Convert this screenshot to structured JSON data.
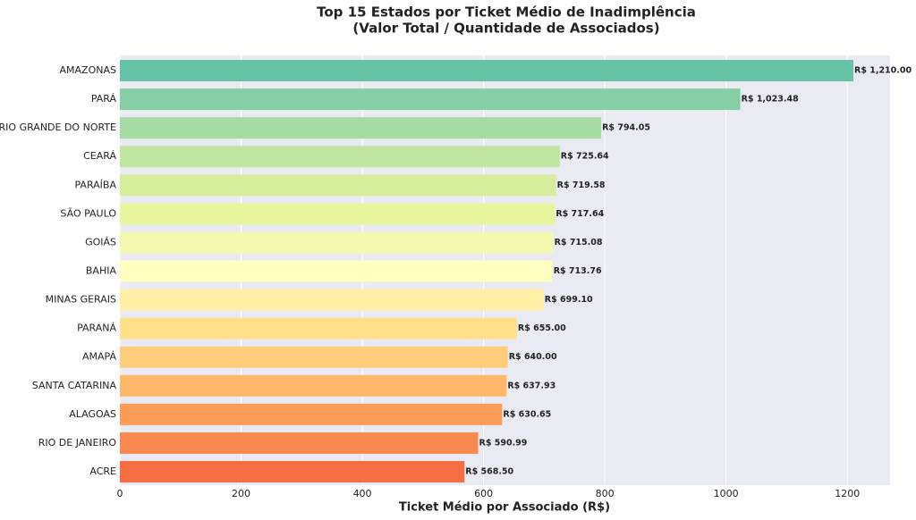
{
  "chart_data": {
    "type": "barh",
    "title": "Top 15 Estados por Ticket Médio de Inadimplência",
    "subtitle": "(Valor Total / Quantidade de Associados)",
    "x_label": "Ticket Médio por Associado (R$)",
    "categories": [
      "AMAZONAS",
      "PARÁ",
      "RIO GRANDE DO NORTE",
      "CEARÁ",
      "PARAÍBA",
      "SÃO PAULO",
      "GOIÁS",
      "BAHIA",
      "MINAS GERAIS",
      "PARANÁ",
      "AMAPÁ",
      "SANTA CATARINA",
      "ALAGOAS",
      "RIO DE JANEIRO",
      "ACRE"
    ],
    "values": [
      1210.0,
      1023.48,
      794.05,
      725.64,
      719.58,
      717.64,
      715.08,
      713.76,
      699.1,
      655.0,
      640.0,
      637.93,
      630.65,
      590.99,
      568.5
    ],
    "value_labels": [
      "R$ 1,210.00",
      "R$ 1,023.48",
      "R$ 794.05",
      "R$ 725.64",
      "R$ 719.58",
      "R$ 717.64",
      "R$ 715.08",
      "R$ 713.76",
      "R$ 699.10",
      "R$ 655.00",
      "R$ 640.00",
      "R$ 637.93",
      "R$ 630.65",
      "R$ 590.99",
      "R$ 568.50"
    ],
    "colors": [
      "#66c2a5",
      "#86cfa5",
      "#a6dba4",
      "#bfe5a0",
      "#d6ee9b",
      "#e9f59d",
      "#f3fab0",
      "#ffffbf",
      "#fff0a6",
      "#fee08b",
      "#fdcd7b",
      "#fdb768",
      "#fa9c58",
      "#f88950",
      "#f46d43"
    ],
    "xlim": [
      0,
      1270.5
    ],
    "xticks": [
      0,
      200,
      400,
      600,
      800,
      1000,
      1200
    ],
    "grid": true
  }
}
